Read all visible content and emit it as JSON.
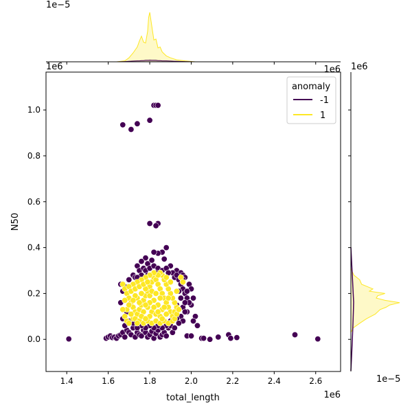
{
  "chart_data": {
    "type": "scatter",
    "kind": "jointplot",
    "xlabel": "total_length",
    "ylabel": "N50",
    "xlim": [
      1.3,
      2.72
    ],
    "ylim": [
      -0.14,
      1.165
    ],
    "x_scale_label": "1e6",
    "y_scale_label": "1e6",
    "x_ticks": [
      "1.4",
      "1.6",
      "1.8",
      "2.0",
      "2.2",
      "2.4",
      "2.6"
    ],
    "x_tick_values": [
      1.4,
      1.6,
      1.8,
      2.0,
      2.2,
      2.4,
      2.6
    ],
    "y_ticks": [
      "0.0",
      "0.2",
      "0.4",
      "0.6",
      "0.8",
      "1.0"
    ],
    "y_tick_values": [
      0.0,
      0.2,
      0.4,
      0.6,
      0.8,
      1.0
    ],
    "top_marginal_scale_label": "1e−5",
    "right_marginal_scale_label": "1e−5",
    "legend": {
      "title": "anomaly",
      "placement": "top-right",
      "entries": [
        {
          "label": "-1",
          "color": "#440154"
        },
        {
          "label": "1",
          "color": "#fde725"
        }
      ]
    },
    "series": [
      {
        "name": "-1",
        "color": "#440154",
        "points": [
          [
            1.82,
            1.02
          ],
          [
            1.83,
            1.02
          ],
          [
            1.84,
            1.02
          ],
          [
            1.67,
            0.935
          ],
          [
            1.71,
            0.915
          ],
          [
            1.74,
            0.94
          ],
          [
            1.8,
            0.955
          ],
          [
            1.8,
            0.505
          ],
          [
            1.84,
            0.505
          ],
          [
            1.83,
            0.495
          ],
          [
            1.88,
            0.4
          ],
          [
            1.86,
            0.38
          ],
          [
            1.84,
            0.375
          ],
          [
            1.82,
            0.38
          ],
          [
            1.78,
            0.355
          ],
          [
            1.76,
            0.34
          ],
          [
            1.79,
            0.33
          ],
          [
            1.81,
            0.345
          ],
          [
            1.87,
            0.35
          ],
          [
            1.74,
            0.32
          ],
          [
            1.9,
            0.32
          ],
          [
            1.93,
            0.3
          ],
          [
            1.95,
            0.29
          ],
          [
            1.96,
            0.28
          ],
          [
            1.97,
            0.27
          ],
          [
            1.99,
            0.24
          ],
          [
            2.0,
            0.22
          ],
          [
            2.01,
            0.18
          ],
          [
            2.0,
            0.15
          ],
          [
            1.98,
            0.12
          ],
          [
            2.02,
            0.1
          ],
          [
            2.01,
            0.08
          ],
          [
            2.03,
            0.06
          ],
          [
            1.98,
            0.015
          ],
          [
            2.0,
            0.015
          ],
          [
            2.05,
            0.005
          ],
          [
            2.06,
            0.005
          ],
          [
            2.09,
            0.0
          ],
          [
            2.13,
            0.01
          ],
          [
            2.18,
            0.02
          ],
          [
            2.19,
            0.005
          ],
          [
            2.22,
            0.008
          ],
          [
            2.5,
            0.02
          ],
          [
            2.61,
            0.002
          ],
          [
            1.41,
            0.002
          ],
          [
            1.59,
            0.005
          ],
          [
            1.6,
            0.01
          ],
          [
            1.61,
            0.015
          ],
          [
            1.62,
            0.008
          ],
          [
            1.63,
            0.01
          ],
          [
            1.64,
            0.005
          ],
          [
            1.65,
            0.015
          ],
          [
            1.66,
            0.02
          ],
          [
            1.67,
            0.03
          ],
          [
            1.68,
            0.01
          ],
          [
            1.69,
            0.04
          ],
          [
            1.7,
            0.03
          ],
          [
            1.71,
            0.02
          ],
          [
            1.72,
            0.05
          ],
          [
            1.73,
            0.01
          ],
          [
            1.74,
            0.03
          ],
          [
            1.75,
            0.02
          ],
          [
            1.76,
            0.015
          ],
          [
            1.77,
            0.04
          ],
          [
            1.78,
            0.03
          ],
          [
            1.79,
            0.01
          ],
          [
            1.8,
            0.02
          ],
          [
            1.81,
            0.035
          ],
          [
            1.82,
            0.005
          ],
          [
            1.83,
            0.025
          ],
          [
            1.84,
            0.04
          ],
          [
            1.85,
            0.01
          ],
          [
            1.86,
            0.02
          ],
          [
            1.87,
            0.03
          ],
          [
            1.88,
            0.015
          ],
          [
            1.89,
            0.05
          ],
          [
            1.9,
            0.06
          ],
          [
            1.91,
            0.03
          ],
          [
            1.66,
            0.16
          ],
          [
            1.67,
            0.21
          ],
          [
            1.68,
            0.23
          ],
          [
            1.66,
            0.24
          ],
          [
            1.69,
            0.12
          ],
          [
            1.7,
            0.26
          ],
          [
            1.72,
            0.28
          ],
          [
            1.73,
            0.27
          ],
          [
            1.75,
            0.3
          ],
          [
            1.77,
            0.31
          ],
          [
            1.78,
            0.3
          ],
          [
            1.8,
            0.31
          ],
          [
            1.82,
            0.32
          ],
          [
            1.84,
            0.31
          ],
          [
            1.86,
            0.3
          ],
          [
            1.88,
            0.31
          ],
          [
            1.91,
            0.29
          ],
          [
            1.92,
            0.27
          ],
          [
            1.94,
            0.26
          ],
          [
            1.95,
            0.24
          ],
          [
            1.96,
            0.22
          ],
          [
            1.97,
            0.2
          ],
          [
            1.98,
            0.18
          ],
          [
            1.99,
            0.16
          ],
          [
            1.96,
            0.14
          ],
          [
            1.97,
            0.12
          ],
          [
            1.95,
            0.1
          ],
          [
            1.96,
            0.08
          ],
          [
            1.93,
            0.09
          ],
          [
            1.94,
            0.07
          ],
          [
            1.92,
            0.05
          ],
          [
            1.9,
            0.08
          ],
          [
            1.88,
            0.06
          ],
          [
            1.86,
            0.05
          ],
          [
            1.84,
            0.06
          ],
          [
            1.82,
            0.05
          ],
          [
            1.8,
            0.06
          ],
          [
            1.78,
            0.05
          ],
          [
            1.76,
            0.06
          ],
          [
            1.74,
            0.05
          ],
          [
            1.72,
            0.07
          ],
          [
            1.7,
            0.08
          ],
          [
            1.68,
            0.06
          ],
          [
            1.67,
            0.09
          ],
          [
            1.94,
            0.21
          ],
          [
            1.95,
            0.18
          ],
          [
            1.93,
            0.15
          ],
          [
            1.94,
            0.13
          ],
          [
            1.92,
            0.11
          ],
          [
            1.97,
            0.16
          ],
          [
            1.98,
            0.21
          ],
          [
            1.96,
            0.26
          ],
          [
            1.93,
            0.28
          ],
          [
            1.89,
            0.29
          ],
          [
            1.85,
            0.29
          ],
          [
            1.83,
            0.29
          ],
          [
            1.79,
            0.28
          ],
          [
            1.76,
            0.28
          ],
          [
            1.74,
            0.27
          ]
        ]
      },
      {
        "name": "1",
        "color": "#fde725",
        "points": [
          [
            1.67,
            0.24
          ],
          [
            1.68,
            0.22
          ],
          [
            1.69,
            0.2
          ],
          [
            1.7,
            0.18
          ],
          [
            1.71,
            0.16
          ],
          [
            1.72,
            0.14
          ],
          [
            1.73,
            0.12
          ],
          [
            1.68,
            0.1
          ],
          [
            1.69,
            0.08
          ],
          [
            1.7,
            0.07
          ],
          [
            1.72,
            0.09
          ],
          [
            1.74,
            0.11
          ],
          [
            1.75,
            0.13
          ],
          [
            1.76,
            0.15
          ],
          [
            1.77,
            0.17
          ],
          [
            1.78,
            0.19
          ],
          [
            1.79,
            0.21
          ],
          [
            1.8,
            0.23
          ],
          [
            1.81,
            0.25
          ],
          [
            1.82,
            0.27
          ],
          [
            1.83,
            0.26
          ],
          [
            1.84,
            0.24
          ],
          [
            1.85,
            0.22
          ],
          [
            1.86,
            0.2
          ],
          [
            1.87,
            0.18
          ],
          [
            1.88,
            0.16
          ],
          [
            1.89,
            0.14
          ],
          [
            1.9,
            0.12
          ],
          [
            1.91,
            0.1
          ],
          [
            1.92,
            0.12
          ],
          [
            1.93,
            0.14
          ],
          [
            1.92,
            0.16
          ],
          [
            1.91,
            0.18
          ],
          [
            1.9,
            0.2
          ],
          [
            1.89,
            0.22
          ],
          [
            1.88,
            0.24
          ],
          [
            1.87,
            0.26
          ],
          [
            1.86,
            0.28
          ],
          [
            1.85,
            0.29
          ],
          [
            1.84,
            0.28
          ],
          [
            1.82,
            0.29
          ],
          [
            1.8,
            0.28
          ],
          [
            1.78,
            0.27
          ],
          [
            1.76,
            0.26
          ],
          [
            1.74,
            0.25
          ],
          [
            1.72,
            0.24
          ],
          [
            1.7,
            0.23
          ],
          [
            1.69,
            0.13
          ],
          [
            1.71,
            0.11
          ],
          [
            1.73,
            0.09
          ],
          [
            1.75,
            0.08
          ],
          [
            1.77,
            0.07
          ],
          [
            1.79,
            0.08
          ],
          [
            1.81,
            0.07
          ],
          [
            1.83,
            0.08
          ],
          [
            1.85,
            0.07
          ],
          [
            1.87,
            0.08
          ],
          [
            1.89,
            0.07
          ],
          [
            1.91,
            0.08
          ],
          [
            1.92,
            0.09
          ],
          [
            1.93,
            0.11
          ],
          [
            1.94,
            0.13
          ],
          [
            1.95,
            0.27
          ],
          [
            1.96,
            0.25
          ],
          [
            1.74,
            0.18
          ],
          [
            1.76,
            0.2
          ],
          [
            1.78,
            0.22
          ],
          [
            1.8,
            0.19
          ],
          [
            1.82,
            0.17
          ],
          [
            1.84,
            0.15
          ],
          [
            1.86,
            0.13
          ],
          [
            1.88,
            0.11
          ],
          [
            1.79,
            0.14
          ],
          [
            1.81,
            0.12
          ],
          [
            1.83,
            0.11
          ],
          [
            1.85,
            0.1
          ],
          [
            1.77,
            0.12
          ],
          [
            1.75,
            0.16
          ],
          [
            1.73,
            0.19
          ],
          [
            1.71,
            0.21
          ],
          [
            1.73,
            0.22
          ],
          [
            1.75,
            0.23
          ],
          [
            1.77,
            0.24
          ],
          [
            1.79,
            0.25
          ],
          [
            1.81,
            0.21
          ],
          [
            1.83,
            0.2
          ],
          [
            1.85,
            0.18
          ],
          [
            1.87,
            0.14
          ],
          [
            1.89,
            0.18
          ],
          [
            1.84,
            0.12
          ],
          [
            1.82,
            0.14
          ],
          [
            1.8,
            0.16
          ],
          [
            1.78,
            0.15
          ],
          [
            1.76,
            0.1
          ],
          [
            1.72,
            0.17
          ],
          [
            1.7,
            0.15
          ],
          [
            1.68,
            0.17
          ],
          [
            1.67,
            0.13
          ],
          [
            1.9,
            0.25
          ],
          [
            1.93,
            0.21
          ],
          [
            1.88,
            0.27
          ],
          [
            1.86,
            0.09
          ],
          [
            1.8,
            0.1
          ],
          [
            1.74,
            0.07
          ],
          [
            1.78,
            0.09
          ]
        ]
      }
    ],
    "top_marginal_density": {
      "x": [
        1.64,
        1.68,
        1.7,
        1.72,
        1.74,
        1.75,
        1.76,
        1.77,
        1.78,
        1.79,
        1.795,
        1.8,
        1.81,
        1.82,
        1.83,
        1.84,
        1.85,
        1.86,
        1.88,
        1.9,
        1.93,
        1.97,
        2.02
      ],
      "y_1": [
        0.0,
        0.02,
        0.08,
        0.18,
        0.3,
        0.42,
        0.52,
        0.4,
        0.38,
        0.62,
        0.9,
        1.0,
        0.72,
        0.44,
        0.46,
        0.28,
        0.3,
        0.2,
        0.12,
        0.08,
        0.04,
        0.02,
        0.0
      ],
      "y_neg1": [
        0.0,
        0.005,
        0.01,
        0.015,
        0.02,
        0.02,
        0.025,
        0.025,
        0.03,
        0.03,
        0.03,
        0.035,
        0.03,
        0.03,
        0.03,
        0.025,
        0.025,
        0.02,
        0.02,
        0.015,
        0.01,
        0.005,
        0.0
      ]
    },
    "right_marginal_density": {
      "y": [
        0.03,
        0.05,
        0.07,
        0.09,
        0.11,
        0.13,
        0.14,
        0.15,
        0.16,
        0.17,
        0.18,
        0.19,
        0.2,
        0.21,
        0.22,
        0.24,
        0.26,
        0.28,
        0.31
      ],
      "x_1": [
        0.0,
        0.05,
        0.18,
        0.32,
        0.5,
        0.6,
        0.72,
        0.8,
        1.0,
        0.7,
        0.52,
        0.55,
        0.7,
        0.38,
        0.45,
        0.22,
        0.18,
        0.06,
        0.0
      ],
      "x_neg1": [
        0.0,
        0.02,
        0.03,
        0.035,
        0.04,
        0.045,
        0.045,
        0.05,
        0.05,
        0.05,
        0.045,
        0.045,
        0.04,
        0.04,
        0.035,
        0.03,
        0.025,
        0.02,
        0.0
      ]
    }
  }
}
